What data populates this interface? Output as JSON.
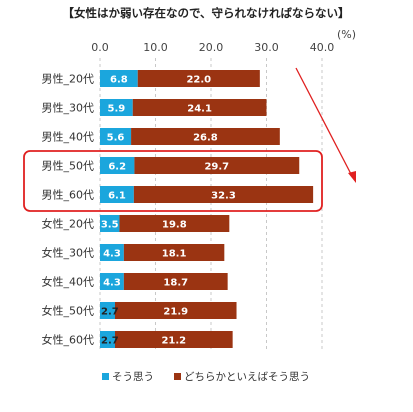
{
  "chart_data": {
    "type": "bar",
    "orientation": "horizontal",
    "stacked": true,
    "title": "【女性はか弱い存在なので、守られなければならない】",
    "unit": "(%)",
    "xlim": [
      0,
      40
    ],
    "ticks": [
      "0.0",
      "10.0",
      "20.0",
      "30.0",
      "40.0"
    ],
    "tick_values": [
      0,
      10,
      20,
      30,
      40
    ],
    "categories": [
      "男性_20代",
      "男性_30代",
      "男性_40代",
      "男性_50代",
      "男性_60代",
      "女性_20代",
      "女性_30代",
      "女性_40代",
      "女性_50代",
      "女性_60代"
    ],
    "series": [
      {
        "name": "そう思う",
        "color": "#1ba6dd",
        "values": [
          6.8,
          5.9,
          5.6,
          6.2,
          6.1,
          3.5,
          4.3,
          4.3,
          2.7,
          2.7
        ],
        "labels": [
          "6.8",
          "5.9",
          "5.6",
          "6.2",
          "6.1",
          "3.5",
          "4.3",
          "4.3",
          "2.7",
          "2.7"
        ]
      },
      {
        "name": "どちらかといえばそう思う",
        "color": "#9b3412",
        "values": [
          22.0,
          24.1,
          26.8,
          29.7,
          32.3,
          19.8,
          18.1,
          18.7,
          21.9,
          21.2
        ],
        "labels": [
          "22.0",
          "24.1",
          "26.8",
          "29.7",
          "32.3",
          "19.8",
          "18.1",
          "18.7",
          "21.9",
          "21.2"
        ]
      }
    ],
    "highlight": {
      "categories": [
        "男性_50代",
        "男性_60代"
      ],
      "color": "#e02020"
    },
    "annotation_arrow_color": "#e02020",
    "grid": "vertical-dashed",
    "legend_position": "bottom"
  }
}
